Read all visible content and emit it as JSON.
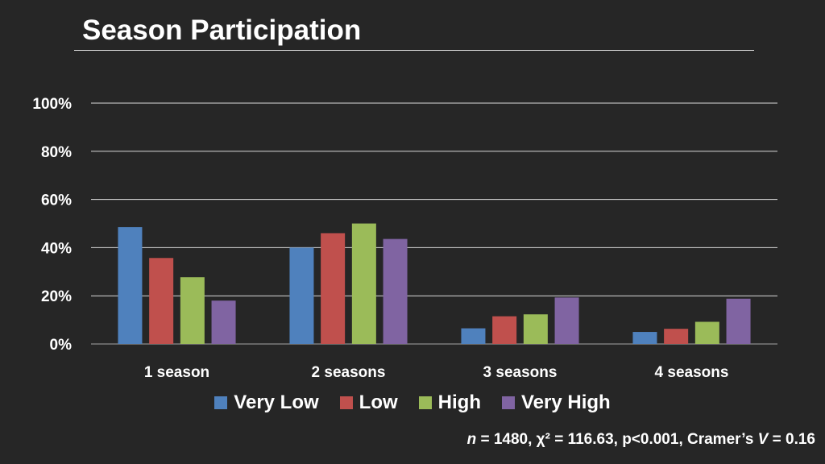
{
  "title": "Season Participation",
  "footnote": {
    "n_symbol": "n",
    "n_value": " = 1480, χ² = 116.63, p<0.001, Cramer’s ",
    "v_symbol": "V",
    "v_value": " = 0.16"
  },
  "chart_data": {
    "type": "bar",
    "categories": [
      "1 season",
      "2 seasons",
      "3 seasons",
      "4 seasons"
    ],
    "series": [
      {
        "name": "Very Low",
        "color": "#4f81bd",
        "values": [
          48.5,
          40,
          6.5,
          5
        ]
      },
      {
        "name": "Low",
        "color": "#c0504d",
        "values": [
          35.7,
          46,
          11.5,
          6.3
        ]
      },
      {
        "name": "High",
        "color": "#9bbb59",
        "values": [
          27.7,
          50,
          12.3,
          9.2
        ]
      },
      {
        "name": "Very High",
        "color": "#8064a2",
        "values": [
          18,
          43.6,
          19.3,
          18.8
        ]
      }
    ],
    "ylim": [
      0,
      100
    ],
    "yticks": [
      "0%",
      "20%",
      "40%",
      "60%",
      "80%",
      "100%"
    ],
    "grid": true,
    "legend": "bottom"
  }
}
